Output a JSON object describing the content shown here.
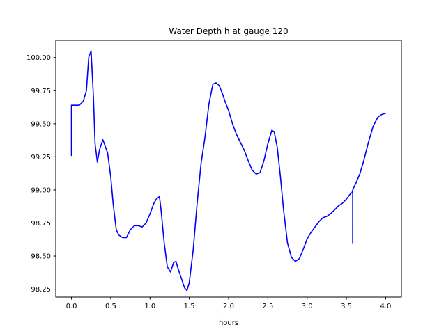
{
  "chart_data": {
    "type": "line",
    "title": "Water Depth h at gauge 120",
    "xlabel": "hours",
    "ylabel": "",
    "xlim": [
      -0.2,
      4.2
    ],
    "ylim": [
      98.19,
      100.13
    ],
    "xticks": [
      0.0,
      0.5,
      1.0,
      1.5,
      2.0,
      2.5,
      3.0,
      3.5,
      4.0
    ],
    "xtick_labels": [
      "0.0",
      "0.5",
      "1.0",
      "1.5",
      "2.0",
      "2.5",
      "3.0",
      "3.5",
      "4.0"
    ],
    "yticks": [
      98.25,
      98.5,
      98.75,
      99.0,
      99.25,
      99.5,
      99.75,
      100.0
    ],
    "ytick_labels": [
      "98.25",
      "98.50",
      "98.75",
      "99.00",
      "99.25",
      "99.50",
      "99.75",
      "100.00"
    ],
    "grid": false,
    "legend": "none",
    "series": [
      {
        "color": "#0000ff",
        "x": [
          0.0,
          0.0,
          0.02,
          0.1,
          0.15,
          0.19,
          0.22,
          0.25,
          0.28,
          0.3,
          0.33,
          0.36,
          0.4,
          0.43,
          0.46,
          0.5,
          0.53,
          0.57,
          0.6,
          0.65,
          0.7,
          0.75,
          0.8,
          0.85,
          0.9,
          0.95,
          1.0,
          1.05,
          1.08,
          1.12,
          1.14,
          1.18,
          1.22,
          1.26,
          1.3,
          1.33,
          1.36,
          1.4,
          1.44,
          1.47,
          1.5,
          1.55,
          1.6,
          1.65,
          1.7,
          1.75,
          1.8,
          1.84,
          1.88,
          1.92,
          1.96,
          2.0,
          2.05,
          2.1,
          2.15,
          2.2,
          2.25,
          2.3,
          2.35,
          2.4,
          2.45,
          2.5,
          2.55,
          2.58,
          2.62,
          2.66,
          2.7,
          2.75,
          2.8,
          2.85,
          2.9,
          2.95,
          3.0,
          3.05,
          3.1,
          3.15,
          3.2,
          3.25,
          3.3,
          3.35,
          3.4,
          3.45,
          3.5,
          3.55,
          3.57,
          3.58,
          3.58,
          3.58,
          3.62,
          3.67,
          3.72,
          3.78,
          3.84,
          3.9,
          3.95,
          4.0
        ],
        "y": [
          99.26,
          99.64,
          99.64,
          99.64,
          99.67,
          99.75,
          100.0,
          100.05,
          99.7,
          99.35,
          99.21,
          99.31,
          99.38,
          99.33,
          99.28,
          99.1,
          98.9,
          98.7,
          98.66,
          98.64,
          98.64,
          98.7,
          98.73,
          98.73,
          98.72,
          98.75,
          98.82,
          98.9,
          98.93,
          98.95,
          98.85,
          98.6,
          98.42,
          98.38,
          98.45,
          98.46,
          98.4,
          98.33,
          98.26,
          98.24,
          98.3,
          98.55,
          98.9,
          99.2,
          99.4,
          99.65,
          99.8,
          99.81,
          99.79,
          99.73,
          99.66,
          99.6,
          99.5,
          99.42,
          99.36,
          99.3,
          99.22,
          99.15,
          99.12,
          99.13,
          99.22,
          99.35,
          99.45,
          99.44,
          99.32,
          99.1,
          98.85,
          98.6,
          98.49,
          98.46,
          98.48,
          98.55,
          98.63,
          98.68,
          98.72,
          98.76,
          98.79,
          98.8,
          98.82,
          98.85,
          98.88,
          98.9,
          98.93,
          98.97,
          98.98,
          98.99,
          98.6,
          99.0,
          99.05,
          99.12,
          99.22,
          99.36,
          99.48,
          99.55,
          99.57,
          99.58
        ]
      }
    ]
  }
}
